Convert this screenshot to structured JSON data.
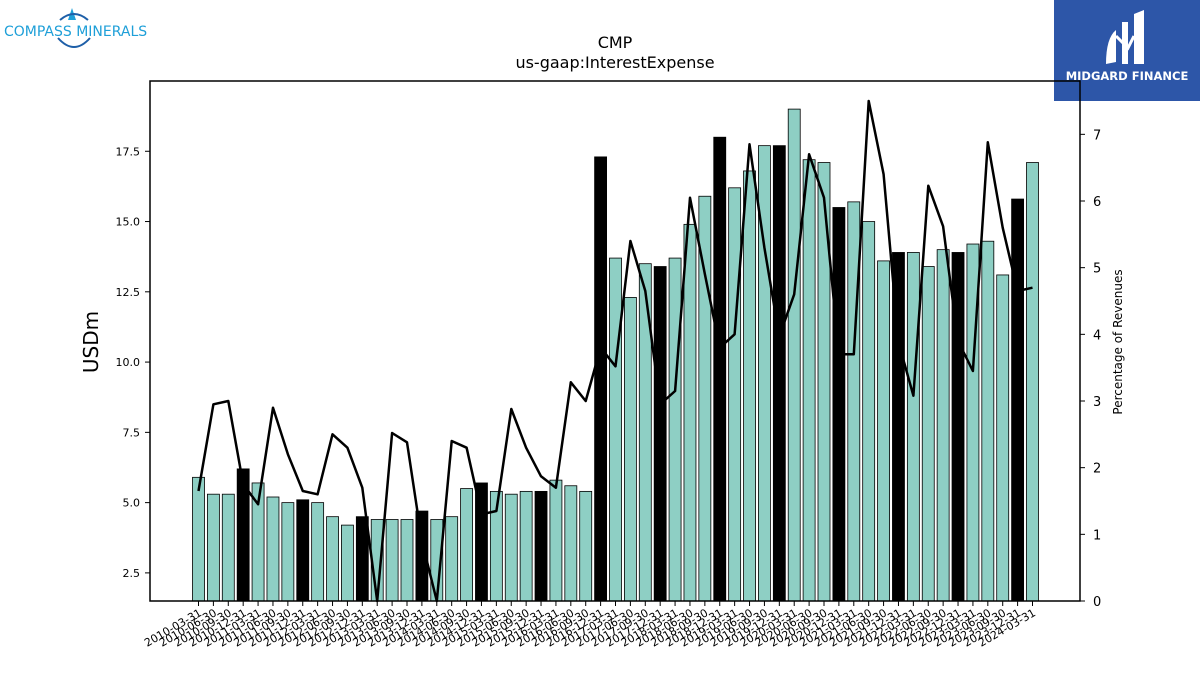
{
  "logos": {
    "left_brand": "COMPASS MINERALS",
    "right_brand": "MIDGARD FINANCE",
    "left_icon": "compass-icon",
    "right_icon": "midgard-m-icon"
  },
  "chart_data": {
    "type": "bar",
    "title": "CMP",
    "subtitle": "us-gaap:InterestExpense",
    "ylabel": "USDm",
    "y2label": "Percentage of Revenues",
    "ylim": [
      1.5,
      20.0
    ],
    "y2lim": [
      0,
      7.8
    ],
    "yticks": [
      2.5,
      5.0,
      7.5,
      10.0,
      12.5,
      15.0,
      17.5
    ],
    "y2ticks": [
      0,
      1,
      2,
      3,
      4,
      5,
      6,
      7
    ],
    "bar_color": "#8ecfc4",
    "highlight_color": "#000000",
    "line_color": "#000000",
    "categories": [
      "2010-03-31",
      "2010-06-30",
      "2010-09-30",
      "2010-12-31",
      "2011-03-31",
      "2011-06-30",
      "2011-09-30",
      "2011-12-31",
      "2012-03-31",
      "2012-06-30",
      "2012-09-30",
      "2012-12-31",
      "2013-03-31",
      "2013-06-30",
      "2013-09-30",
      "2013-12-31",
      "2014-03-31",
      "2014-06-30",
      "2014-09-30",
      "2014-12-31",
      "2015-03-31",
      "2015-06-30",
      "2015-09-30",
      "2015-12-31",
      "2016-03-31",
      "2016-06-30",
      "2016-09-30",
      "2016-12-31",
      "2017-03-31",
      "2017-06-30",
      "2017-09-30",
      "2017-12-31",
      "2018-03-31",
      "2018-06-30",
      "2018-09-30",
      "2018-12-31",
      "2019-03-31",
      "2019-06-30",
      "2019-09-30",
      "2019-12-31",
      "2020-03-31",
      "2020-06-30",
      "2020-09-30",
      "2020-12-31",
      "2021-03-31",
      "2021-06-30",
      "2021-09-30",
      "2021-12-31",
      "2022-03-31",
      "2022-06-30",
      "2022-09-30",
      "2022-12-31",
      "2023-03-31",
      "2023-06-30",
      "2023-09-30",
      "2023-12-31",
      "2024-03-31"
    ],
    "series": [
      {
        "values": [
          5.9,
          5.3,
          5.3,
          6.2,
          5.7,
          5.2,
          5.0,
          5.1,
          5.0,
          4.5,
          4.2,
          4.5,
          4.4,
          4.4,
          4.4,
          4.7,
          4.4,
          4.5,
          5.5,
          5.7,
          5.4,
          5.3,
          5.4,
          5.4,
          5.8,
          5.6,
          5.4,
          17.3,
          13.7,
          12.3,
          13.5,
          13.4,
          13.7,
          14.9,
          15.9,
          18.0,
          16.2,
          16.8,
          17.7,
          17.7,
          19.0,
          17.2,
          17.1,
          15.5,
          15.7,
          15.0,
          13.6,
          13.9,
          13.9,
          13.4,
          14.0,
          13.9,
          14.2,
          14.3,
          13.1,
          15.8,
          17.1
        ],
        "highlight": [
          false,
          false,
          false,
          true,
          false,
          false,
          false,
          true,
          false,
          false,
          false,
          true,
          false,
          false,
          false,
          true,
          false,
          false,
          false,
          true,
          false,
          false,
          false,
          true,
          false,
          false,
          false,
          true,
          false,
          false,
          false,
          true,
          false,
          false,
          false,
          true,
          false,
          false,
          false,
          true,
          false,
          false,
          false,
          true,
          false,
          false,
          false,
          true,
          false,
          false,
          false,
          true,
          false,
          false,
          false,
          true,
          false
        ]
      },
      {
        "axis": "right",
        "type": "line",
        "values": [
          1.65,
          2.95,
          3.0,
          1.75,
          1.45,
          2.9,
          2.2,
          1.65,
          1.6,
          2.5,
          2.3,
          1.7,
          0.0,
          2.52,
          2.38,
          0.9,
          0.0,
          2.4,
          2.3,
          1.3,
          1.35,
          2.88,
          2.3,
          1.87,
          1.7,
          3.28,
          3.0,
          3.8,
          3.52,
          5.4,
          4.65,
          2.95,
          3.15,
          6.05,
          4.9,
          3.8,
          4.0,
          6.85,
          5.3,
          3.97,
          4.6,
          6.7,
          6.05,
          3.7,
          3.7,
          7.5,
          6.4,
          3.88,
          3.08,
          6.23,
          5.62,
          3.9,
          3.45,
          6.88,
          5.6,
          4.65,
          4.7
        ]
      }
    ]
  }
}
